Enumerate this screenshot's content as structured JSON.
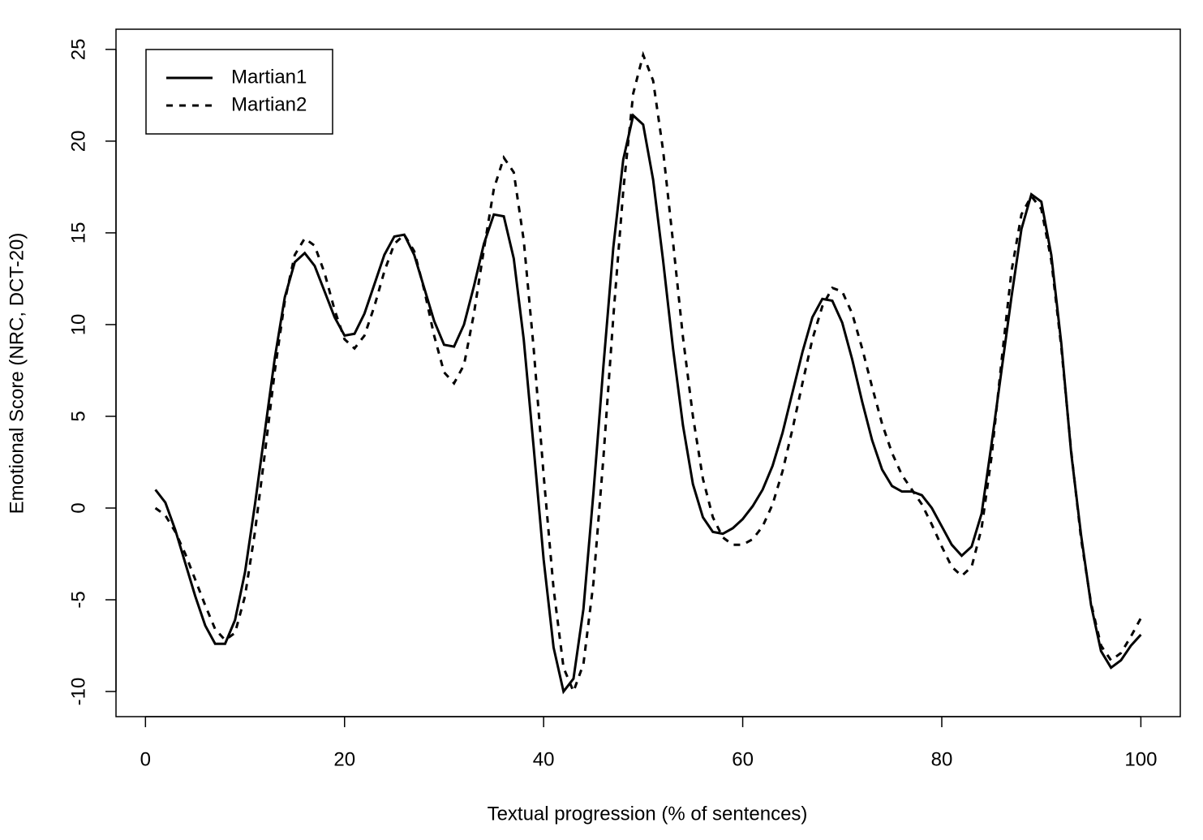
{
  "chart_data": {
    "type": "line",
    "x_label": "Textual progression (% of sentences)",
    "y_label": "Emotional Score (NRC, DCT-20)",
    "x": [
      1,
      2,
      3,
      4,
      5,
      6,
      7,
      8,
      9,
      10,
      11,
      12,
      13,
      14,
      15,
      16,
      17,
      18,
      19,
      20,
      21,
      22,
      23,
      24,
      25,
      26,
      27,
      28,
      29,
      30,
      31,
      32,
      33,
      34,
      35,
      36,
      37,
      38,
      39,
      40,
      41,
      42,
      43,
      44,
      45,
      46,
      47,
      48,
      49,
      50,
      51,
      52,
      53,
      54,
      55,
      56,
      57,
      58,
      59,
      60,
      61,
      62,
      63,
      64,
      65,
      66,
      67,
      68,
      69,
      70,
      71,
      72,
      73,
      74,
      75,
      76,
      77,
      78,
      79,
      80,
      81,
      82,
      83,
      84,
      85,
      86,
      87,
      88,
      89,
      90,
      91,
      92,
      93,
      94,
      95,
      96,
      97,
      98,
      99,
      100
    ],
    "series": [
      {
        "name": "Martian1",
        "color": "#000000",
        "line_style": "solid",
        "values": [
          1.0,
          0.3,
          -1.2,
          -3.0,
          -4.8,
          -6.4,
          -7.4,
          -7.4,
          -6.1,
          -3.5,
          0.2,
          4.2,
          8.2,
          11.5,
          13.4,
          13.9,
          13.2,
          11.8,
          10.4,
          9.4,
          9.5,
          10.6,
          12.2,
          13.8,
          14.8,
          14.9,
          13.8,
          12.0,
          10.2,
          8.9,
          8.8,
          10.0,
          12.1,
          14.4,
          16.0,
          15.9,
          13.6,
          9.2,
          3.3,
          -2.8,
          -7.6,
          -10.0,
          -9.3,
          -5.5,
          0.8,
          7.7,
          14.2,
          19.0,
          21.4,
          20.9,
          17.9,
          13.5,
          8.7,
          4.5,
          1.3,
          -0.5,
          -1.3,
          -1.4,
          -1.1,
          -0.6,
          0.1,
          1.0,
          2.3,
          4.1,
          6.3,
          8.5,
          10.4,
          11.4,
          11.3,
          10.1,
          8.1,
          5.8,
          3.7,
          2.1,
          1.2,
          0.9,
          0.9,
          0.7,
          0.0,
          -1.0,
          -2.0,
          -2.6,
          -2.1,
          -0.3,
          3.5,
          7.5,
          11.5,
          15.2,
          17.1,
          16.7,
          13.8,
          9.0,
          3.0,
          -1.5,
          -5.3,
          -7.8,
          -8.7,
          -8.3,
          -7.5,
          -6.9
        ]
      },
      {
        "name": "Martian2",
        "color": "#000000",
        "line_style": "dashed",
        "values": [
          0.0,
          -0.4,
          -1.3,
          -2.5,
          -3.9,
          -5.3,
          -6.6,
          -7.2,
          -6.8,
          -4.8,
          -1.3,
          3.0,
          7.5,
          11.3,
          13.8,
          14.7,
          14.3,
          12.8,
          10.8,
          9.2,
          8.7,
          9.4,
          11.0,
          12.9,
          14.4,
          14.9,
          14.0,
          11.9,
          9.4,
          7.4,
          6.8,
          7.8,
          10.6,
          14.1,
          17.4,
          19.1,
          18.3,
          14.6,
          8.7,
          1.8,
          -4.4,
          -8.7,
          -10.0,
          -8.5,
          -4.1,
          2.7,
          10.4,
          17.3,
          22.6,
          24.7,
          23.3,
          19.5,
          14.5,
          9.3,
          5.0,
          1.6,
          -0.5,
          -1.6,
          -2.0,
          -2.0,
          -1.7,
          -1.0,
          0.2,
          2.0,
          4.3,
          6.8,
          9.2,
          11.0,
          12.0,
          11.8,
          10.6,
          8.7,
          6.6,
          4.6,
          3.0,
          1.8,
          1.0,
          0.2,
          -0.9,
          -2.1,
          -3.2,
          -3.7,
          -3.2,
          -1.1,
          2.8,
          8.0,
          12.9,
          16.0,
          17.0,
          16.3,
          13.5,
          8.8,
          3.1,
          -1.7,
          -5.2,
          -7.5,
          -8.3,
          -7.9,
          -7.0,
          -6.0
        ]
      }
    ],
    "xlim": [
      -2.96,
      103.96
    ],
    "ylim": [
      -11.37,
      26.1
    ],
    "xticks": [
      0,
      20,
      40,
      60,
      80,
      100
    ],
    "yticks": [
      -10,
      -5,
      0,
      5,
      10,
      15,
      20,
      25
    ],
    "legend": "topleft",
    "grid": false
  }
}
